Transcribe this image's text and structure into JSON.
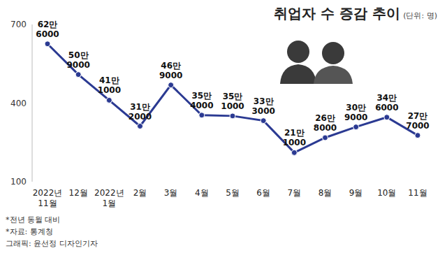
{
  "chart_data": {
    "type": "line",
    "title": "취업자 수 증감 추이",
    "subtitle": "(단위: 명)",
    "categories": [
      "2022년 11월",
      "12월",
      "2022년 1월",
      "2월",
      "3월",
      "4월",
      "5월",
      "6월",
      "7월",
      "8월",
      "9월",
      "10월",
      "11월"
    ],
    "values": [
      626,
      509,
      411,
      312,
      469,
      354,
      351,
      333,
      211,
      268,
      309,
      346,
      277
    ],
    "value_labels": [
      "62만 6000",
      "50만 9000",
      "41만 1000",
      "31만 2000",
      "46만 9000",
      "35만 4000",
      "35만 1000",
      "33만 3000",
      "21만 1000",
      "26만 8000",
      "30만 9000",
      "34만 6000",
      "27만 7000"
    ],
    "color": "#2b3a92",
    "marker": "circle",
    "ylim": [
      100,
      700
    ],
    "yticks": [
      100,
      400,
      700
    ],
    "grid": false,
    "data_labels": true,
    "notes": [
      "*전년 동월 대비",
      "*자료: 통계청",
      "그래픽: 윤선정 디자인기자"
    ]
  }
}
